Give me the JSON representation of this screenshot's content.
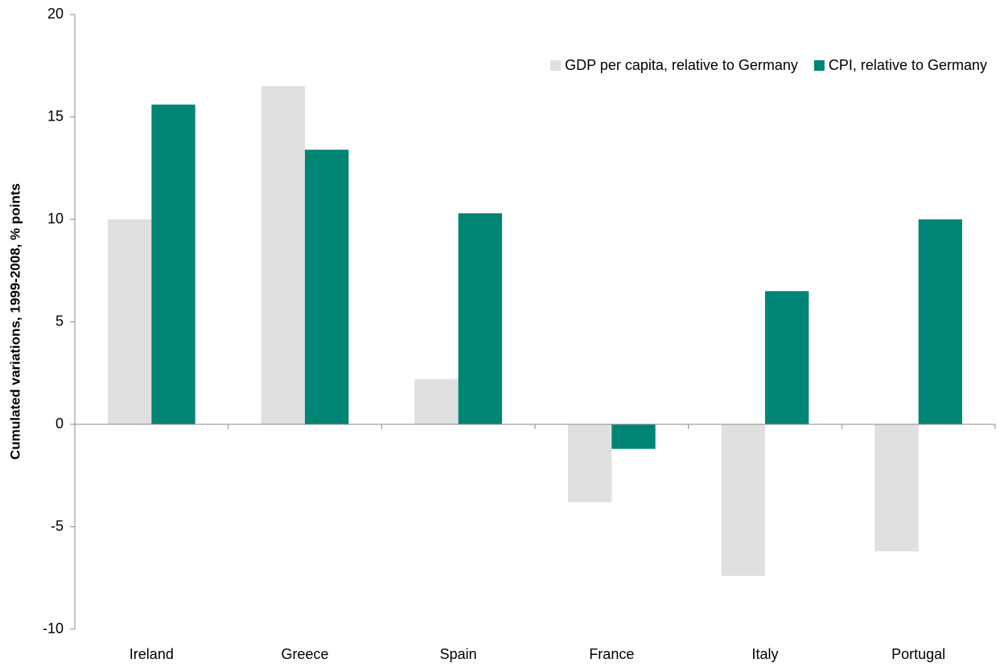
{
  "chart_data": {
    "type": "bar",
    "y_label": "Cumulated variations, 1999-2008, % points",
    "categories": [
      "Ireland",
      "Greece",
      "Spain",
      "France",
      "Italy",
      "Portugal"
    ],
    "series": [
      {
        "name": "GDP per capita, relative to Germany",
        "color": "#e0e0e0",
        "values": [
          10.0,
          16.5,
          2.2,
          -3.8,
          -7.4,
          -6.2
        ]
      },
      {
        "name": "CPI, relative to Germany",
        "color": "#008575",
        "values": [
          15.6,
          13.4,
          10.3,
          -1.2,
          6.5,
          10.0
        ]
      }
    ],
    "ylim": [
      -10,
      20
    ],
    "yticks": [
      -10,
      -5,
      0,
      5,
      10,
      15,
      20
    ],
    "grid": false,
    "legend": "top-right"
  }
}
